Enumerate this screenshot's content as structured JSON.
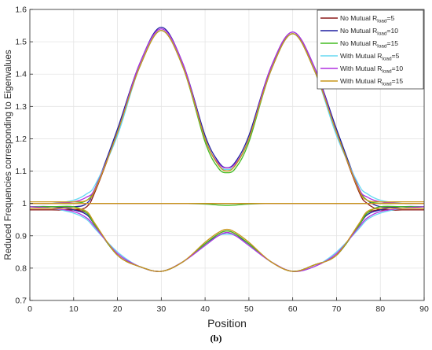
{
  "caption": "(b)",
  "chart_data": {
    "type": "line",
    "xlabel": "Position",
    "ylabel": "Reduced Frequencies corresponding to Eigenvalues",
    "xlim": [
      0,
      90
    ],
    "ylim": [
      0.7,
      1.6
    ],
    "xticks": [
      0,
      10,
      20,
      30,
      40,
      50,
      60,
      70,
      80,
      90
    ],
    "yticks": [
      0.7,
      0.8,
      0.9,
      1,
      1.1,
      1.2,
      1.3,
      1.4,
      1.5,
      1.6
    ],
    "xtick_labels": [
      "0",
      "10",
      "20",
      "30",
      "40",
      "50",
      "60",
      "70",
      "80",
      "90"
    ],
    "ytick_labels": [
      "0.7",
      "0.8",
      "0.9",
      "1",
      "1.1",
      "1.2",
      "1.3",
      "1.4",
      "1.5",
      "1.6"
    ],
    "grid": true,
    "legend_position": "top-right",
    "x": [
      0,
      5,
      10,
      13,
      15,
      20,
      25,
      30,
      35,
      40,
      43,
      45,
      47,
      50,
      55,
      60,
      65,
      70,
      75,
      77,
      80,
      85,
      90
    ],
    "series": [
      {
        "name": "No Mutual R_load=5",
        "color": "#8b1a1a",
        "branches": [
          [
            0.98,
            0.98,
            0.98,
            0.99,
            1.04,
            1.22,
            1.42,
            1.535,
            1.42,
            1.2,
            1.12,
            1.105,
            1.12,
            1.2,
            1.41,
            1.525,
            1.41,
            1.22,
            1.04,
            1.0,
            0.98,
            0.98,
            0.98
          ],
          [
            1.0,
            1.0,
            1.0,
            1.0,
            1.0,
            1.0,
            1.0,
            1.0,
            1.0,
            1.0,
            1.0,
            1.0,
            1.0,
            1.0,
            1.0,
            1.0,
            1.0,
            1.0,
            1.0,
            1.0,
            1.0,
            1.0,
            1.0
          ],
          [
            0.98,
            0.98,
            0.98,
            0.97,
            0.93,
            0.84,
            0.805,
            0.79,
            0.82,
            0.875,
            0.905,
            0.915,
            0.905,
            0.875,
            0.82,
            0.79,
            0.81,
            0.84,
            0.93,
            0.97,
            0.98,
            0.98,
            0.98
          ]
        ]
      },
      {
        "name": "No Mutual R_load=10",
        "color": "#1f1fa0",
        "branches": [
          [
            0.99,
            0.99,
            0.99,
            1.0,
            1.05,
            1.23,
            1.43,
            1.545,
            1.43,
            1.21,
            1.13,
            1.11,
            1.13,
            1.21,
            1.42,
            1.53,
            1.42,
            1.23,
            1.05,
            1.01,
            0.99,
            0.99,
            0.99
          ],
          [
            1.0,
            1.0,
            1.0,
            1.0,
            1.0,
            1.0,
            1.0,
            1.0,
            1.0,
            1.0,
            1.0,
            1.0,
            1.0,
            1.0,
            1.0,
            1.0,
            1.0,
            1.0,
            1.0,
            1.0,
            1.0,
            1.0,
            1.0
          ],
          [
            0.99,
            0.99,
            0.98,
            0.965,
            0.93,
            0.84,
            0.805,
            0.79,
            0.82,
            0.875,
            0.9,
            0.91,
            0.9,
            0.875,
            0.82,
            0.79,
            0.81,
            0.84,
            0.93,
            0.965,
            0.98,
            0.99,
            0.99
          ]
        ]
      },
      {
        "name": "No Mutual R_load=15",
        "color": "#44bb22",
        "branches": [
          [
            1.0,
            1.0,
            1.0,
            1.01,
            1.05,
            1.22,
            1.42,
            1.535,
            1.42,
            1.19,
            1.11,
            1.095,
            1.11,
            1.19,
            1.41,
            1.525,
            1.41,
            1.22,
            1.05,
            1.01,
            1.0,
            1.0,
            1.0
          ],
          [
            1.0,
            1.0,
            1.0,
            1.0,
            1.0,
            1.0,
            1.0,
            1.0,
            1.0,
            0.998,
            0.995,
            0.994,
            0.995,
            0.998,
            1.0,
            1.0,
            1.0,
            1.0,
            1.0,
            1.0,
            1.0,
            1.0,
            1.0
          ],
          [
            0.99,
            0.99,
            0.99,
            0.97,
            0.93,
            0.84,
            0.805,
            0.79,
            0.82,
            0.875,
            0.905,
            0.915,
            0.905,
            0.875,
            0.82,
            0.79,
            0.81,
            0.84,
            0.93,
            0.97,
            0.99,
            0.99,
            0.99
          ]
        ]
      },
      {
        "name": "With Mutual R_load=5",
        "color": "#66d9f2",
        "branches": [
          [
            1.0,
            1.0,
            1.01,
            1.03,
            1.06,
            1.21,
            1.42,
            1.535,
            1.42,
            1.2,
            1.12,
            1.105,
            1.12,
            1.2,
            1.41,
            1.525,
            1.41,
            1.21,
            1.06,
            1.03,
            1.01,
            1.0,
            1.0
          ],
          [
            1.0,
            1.0,
            1.0,
            1.0,
            1.0,
            1.0,
            1.0,
            1.0,
            1.0,
            1.0,
            1.0,
            1.0,
            1.0,
            1.0,
            1.0,
            1.0,
            1.0,
            1.0,
            1.0,
            1.0,
            1.0,
            1.0,
            1.0
          ],
          [
            0.99,
            0.985,
            0.97,
            0.95,
            0.92,
            0.85,
            0.805,
            0.79,
            0.82,
            0.87,
            0.9,
            0.905,
            0.9,
            0.87,
            0.82,
            0.79,
            0.805,
            0.85,
            0.92,
            0.95,
            0.97,
            0.985,
            0.99
          ]
        ]
      },
      {
        "name": "With Mutual R_load=10",
        "color": "#b030e0",
        "branches": [
          [
            1.0,
            1.0,
            1.005,
            1.02,
            1.05,
            1.22,
            1.43,
            1.54,
            1.43,
            1.2,
            1.125,
            1.11,
            1.125,
            1.2,
            1.42,
            1.53,
            1.42,
            1.22,
            1.05,
            1.02,
            1.005,
            1.0,
            1.0
          ],
          [
            1.0,
            1.0,
            1.0,
            1.0,
            1.0,
            1.0,
            1.0,
            1.0,
            1.0,
            1.0,
            1.0,
            1.0,
            1.0,
            1.0,
            1.0,
            1.0,
            1.0,
            1.0,
            1.0,
            1.0,
            1.0,
            1.0,
            1.0
          ],
          [
            0.99,
            0.985,
            0.975,
            0.955,
            0.925,
            0.845,
            0.805,
            0.79,
            0.82,
            0.87,
            0.9,
            0.91,
            0.9,
            0.87,
            0.82,
            0.79,
            0.805,
            0.845,
            0.925,
            0.955,
            0.975,
            0.985,
            0.99
          ]
        ]
      },
      {
        "name": "With Mutual R_load=15",
        "color": "#c9961a",
        "branches": [
          [
            1.005,
            1.005,
            1.005,
            1.01,
            1.045,
            1.22,
            1.42,
            1.535,
            1.42,
            1.2,
            1.12,
            1.1,
            1.12,
            1.2,
            1.41,
            1.525,
            1.41,
            1.22,
            1.045,
            1.01,
            1.005,
            1.005,
            1.005
          ],
          [
            1.0,
            1.0,
            1.0,
            1.0,
            1.0,
            1.0,
            1.0,
            1.0,
            1.0,
            1.0,
            1.0,
            1.0,
            1.0,
            1.0,
            1.0,
            1.0,
            1.0,
            1.0,
            1.0,
            1.0,
            1.0,
            1.0,
            1.0
          ],
          [
            0.985,
            0.985,
            0.985,
            0.975,
            0.935,
            0.84,
            0.805,
            0.79,
            0.82,
            0.88,
            0.91,
            0.92,
            0.91,
            0.88,
            0.82,
            0.79,
            0.81,
            0.84,
            0.935,
            0.975,
            0.985,
            0.985,
            0.985
          ]
        ]
      }
    ],
    "legend": [
      {
        "prefix": "No Mutual R",
        "sub": "load",
        "suffix": "=5"
      },
      {
        "prefix": "No Mutual R",
        "sub": "load",
        "suffix": "=10"
      },
      {
        "prefix": "No Mutual R",
        "sub": "load",
        "suffix": "=15"
      },
      {
        "prefix": "With Mutual R",
        "sub": "load",
        "suffix": "=5"
      },
      {
        "prefix": "With Mutual R",
        "sub": "load",
        "suffix": "=10"
      },
      {
        "prefix": "With Mutual R",
        "sub": "load",
        "suffix": "=15"
      }
    ]
  }
}
